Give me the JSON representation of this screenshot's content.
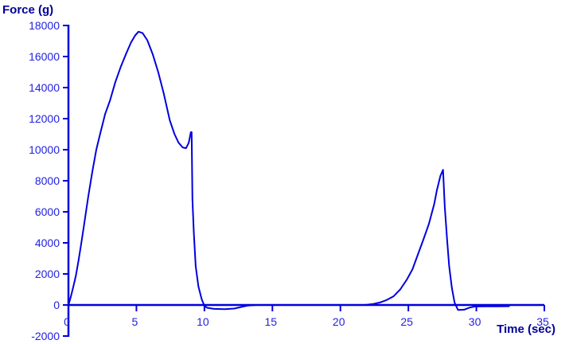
{
  "chart_data": {
    "type": "line",
    "title": "",
    "xlabel": "Time (sec)",
    "ylabel": "Force (g)",
    "xlim": [
      0,
      35
    ],
    "ylim": [
      -2000,
      18000
    ],
    "grid": false,
    "legend": "none",
    "colors": {
      "curve": "#0000dd",
      "axis": "#0000dd",
      "tick_label": "#2222e2",
      "axis_title": "#000099",
      "background": "#ffffff"
    },
    "x_ticks": [
      {
        "value": 0,
        "label": "0"
      },
      {
        "value": 5,
        "label": "5"
      },
      {
        "value": 10,
        "label": "10"
      },
      {
        "value": 15,
        "label": "15"
      },
      {
        "value": 20,
        "label": "20"
      },
      {
        "value": 25,
        "label": "25"
      },
      {
        "value": 30,
        "label": "30"
      },
      {
        "value": 35,
        "label": "35"
      }
    ],
    "y_ticks": [
      {
        "value": 18000,
        "label": "18000"
      },
      {
        "value": 16000,
        "label": "16000"
      },
      {
        "value": 14000,
        "label": "14000"
      },
      {
        "value": 12000,
        "label": "12000"
      },
      {
        "value": 10000,
        "label": "10000"
      },
      {
        "value": 8000,
        "label": "8000"
      },
      {
        "value": 6000,
        "label": "6000"
      },
      {
        "value": 4000,
        "label": "4000"
      },
      {
        "value": 2000,
        "label": "2000"
      },
      {
        "value": 0,
        "label": "0"
      },
      {
        "value": -2000,
        "label": "-2000"
      }
    ],
    "series": [
      {
        "name": "force",
        "points": [
          [
            0,
            0
          ],
          [
            0.15,
            450
          ],
          [
            0.35,
            1150
          ],
          [
            0.55,
            1900
          ],
          [
            0.75,
            2900
          ],
          [
            0.95,
            4000
          ],
          [
            1.15,
            5150
          ],
          [
            1.45,
            6950
          ],
          [
            1.75,
            8550
          ],
          [
            2.05,
            10000
          ],
          [
            2.35,
            11100
          ],
          [
            2.7,
            12300
          ],
          [
            3.05,
            13150
          ],
          [
            3.45,
            14350
          ],
          [
            3.85,
            15350
          ],
          [
            4.25,
            16200
          ],
          [
            4.6,
            16900
          ],
          [
            4.9,
            17350
          ],
          [
            5.15,
            17600
          ],
          [
            5.45,
            17520
          ],
          [
            5.8,
            17050
          ],
          [
            6.2,
            16150
          ],
          [
            6.6,
            15000
          ],
          [
            7.0,
            13650
          ],
          [
            7.45,
            11900
          ],
          [
            7.8,
            11000
          ],
          [
            8.1,
            10450
          ],
          [
            8.4,
            10150
          ],
          [
            8.65,
            10100
          ],
          [
            8.85,
            10450
          ],
          [
            9.0,
            11130
          ],
          [
            9.06,
            11130
          ],
          [
            9.12,
            6800
          ],
          [
            9.22,
            4700
          ],
          [
            9.36,
            2500
          ],
          [
            9.56,
            1200
          ],
          [
            9.8,
            380
          ],
          [
            10.0,
            -60
          ],
          [
            10.2,
            -180
          ],
          [
            10.7,
            -250
          ],
          [
            11.5,
            -270
          ],
          [
            12.2,
            -230
          ],
          [
            12.8,
            -110
          ],
          [
            13.2,
            -40
          ],
          [
            13.8,
            0
          ],
          [
            21.8,
            0
          ],
          [
            22.4,
            60
          ],
          [
            22.9,
            160
          ],
          [
            23.4,
            320
          ],
          [
            23.9,
            550
          ],
          [
            24.4,
            1000
          ],
          [
            24.9,
            1650
          ],
          [
            25.3,
            2300
          ],
          [
            25.7,
            3250
          ],
          [
            26.1,
            4200
          ],
          [
            26.5,
            5200
          ],
          [
            26.9,
            6500
          ],
          [
            27.1,
            7400
          ],
          [
            27.35,
            8300
          ],
          [
            27.55,
            8700
          ],
          [
            27.68,
            6300
          ],
          [
            27.85,
            4200
          ],
          [
            28.0,
            2500
          ],
          [
            28.2,
            1100
          ],
          [
            28.4,
            150
          ],
          [
            28.65,
            -320
          ],
          [
            29.1,
            -300
          ],
          [
            29.5,
            -170
          ],
          [
            29.9,
            -100
          ],
          [
            30.6,
            -90
          ],
          [
            31.6,
            -90
          ],
          [
            32.4,
            -80
          ]
        ]
      }
    ]
  }
}
